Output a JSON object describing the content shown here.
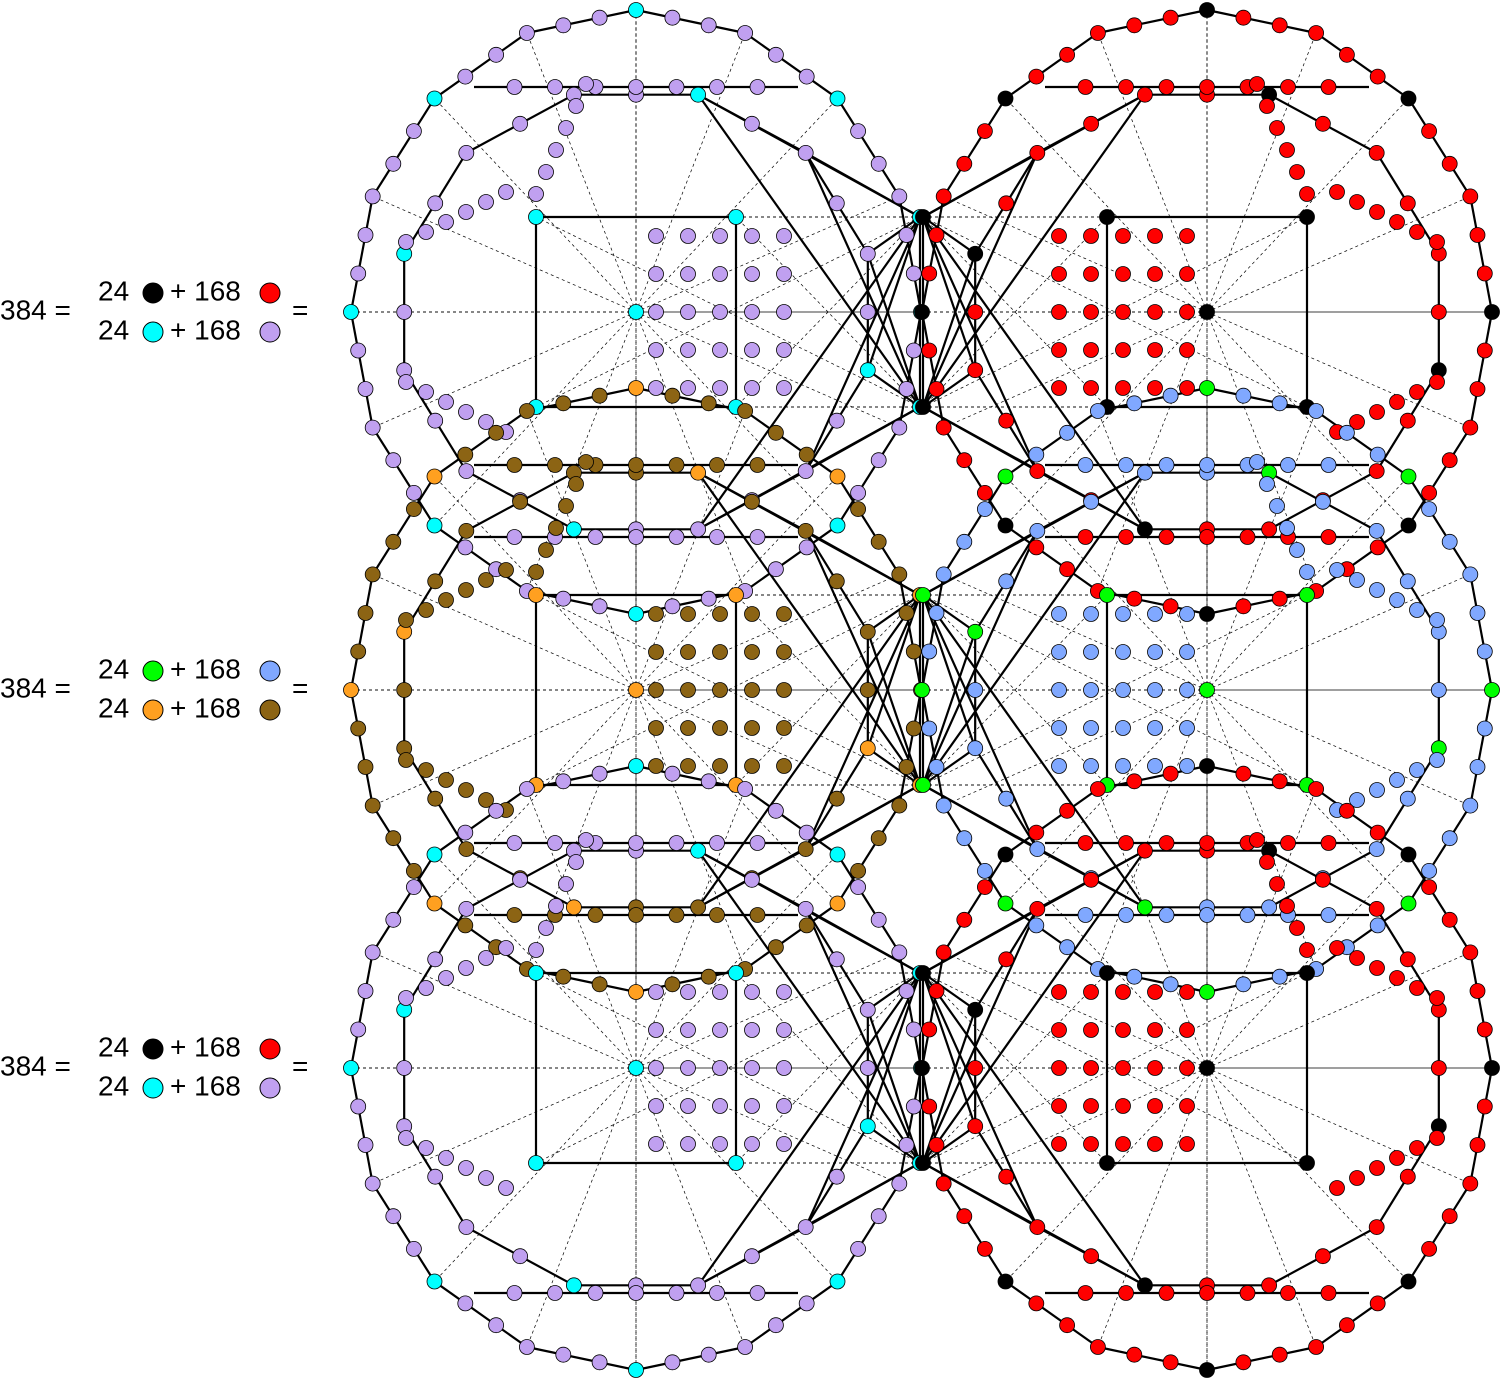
{
  "equations": [
    {
      "total": "384 =",
      "rows": [
        {
          "count": 24,
          "color": "#000000",
          "term": "+ 168",
          "color2": "#ff0000"
        },
        {
          "count": 24,
          "color": "#00ffff",
          "term": "+ 168",
          "color2": "#c0a0f0"
        }
      ],
      "tail": "="
    },
    {
      "total": "384 =",
      "rows": [
        {
          "count": 24,
          "color": "#00ff00",
          "term": "+ 168",
          "color2": "#80a8ff"
        },
        {
          "count": 24,
          "color": "#ffa020",
          "term": "+ 168",
          "color2": "#8c6414"
        }
      ],
      "tail": "="
    },
    {
      "total": "384 =",
      "rows": [
        {
          "count": 24,
          "color": "#000000",
          "term": "+ 168",
          "color2": "#ff0000"
        },
        {
          "count": 24,
          "color": "#00ffff",
          "term": "+ 168",
          "color2": "#c0a0f0"
        }
      ],
      "tail": "="
    }
  ]
}
